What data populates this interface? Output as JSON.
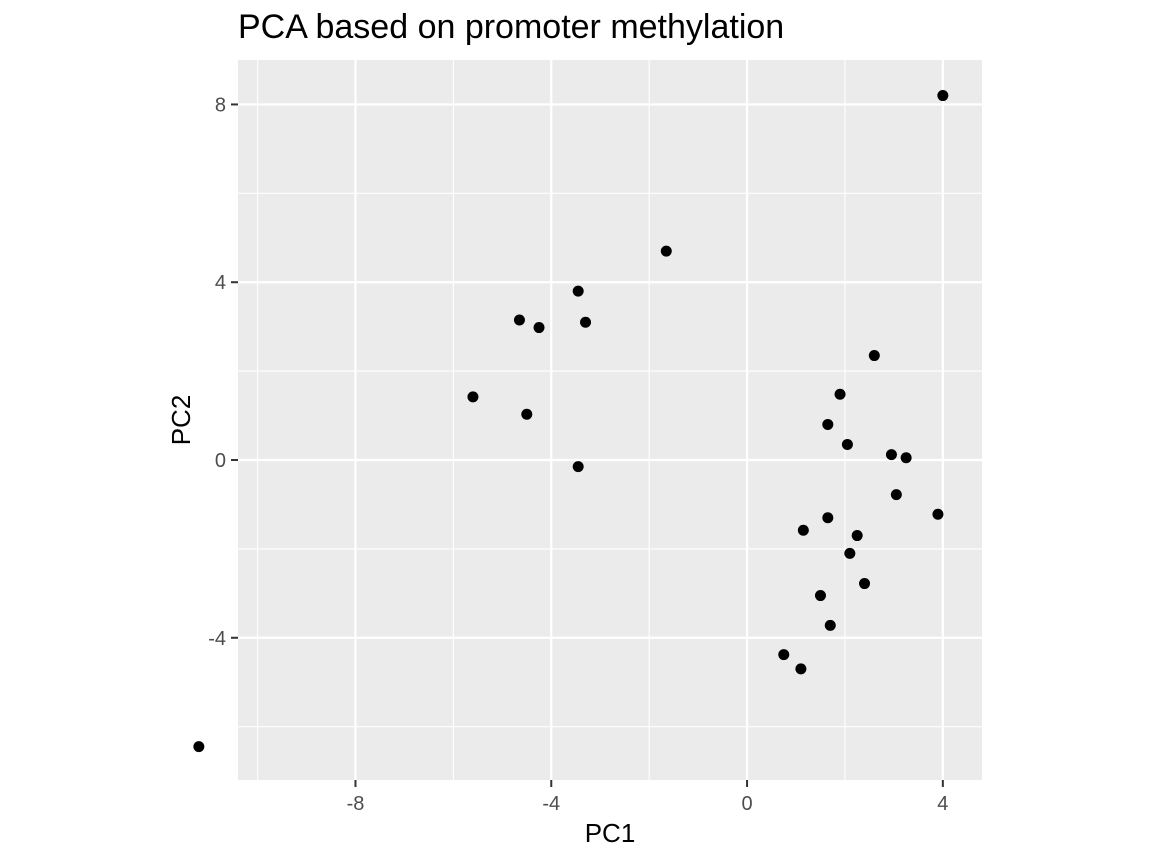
{
  "chart_data": {
    "type": "scatter",
    "title": "PCA based on promoter methylation",
    "xlabel": "PC1",
    "ylabel": "PC2",
    "xlim": [
      -10.4,
      4.8
    ],
    "ylim": [
      -7.2,
      9.0
    ],
    "x_ticks": [
      -8,
      -4,
      0,
      4
    ],
    "x_tick_labels": [
      "-8",
      "-4",
      "0",
      "4"
    ],
    "y_ticks": [
      -4,
      0,
      4,
      8
    ],
    "y_tick_labels": [
      "-4",
      "0",
      "4",
      "8"
    ],
    "grid": true,
    "legend": "none",
    "colors": {
      "panel_background": "#ebebeb",
      "grid": "#ffffff",
      "point": "#000000",
      "tick_label": "#4d4d4d",
      "tick_mark": "#333333"
    },
    "points": [
      {
        "x": 4.0,
        "y": 8.2
      },
      {
        "x": -1.65,
        "y": 4.7
      },
      {
        "x": -3.45,
        "y": 3.8
      },
      {
        "x": -4.65,
        "y": 3.15
      },
      {
        "x": -4.25,
        "y": 2.98
      },
      {
        "x": -3.3,
        "y": 3.1
      },
      {
        "x": -5.6,
        "y": 1.42
      },
      {
        "x": -4.5,
        "y": 1.03
      },
      {
        "x": -3.45,
        "y": -0.15
      },
      {
        "x": 2.6,
        "y": 2.35
      },
      {
        "x": 1.9,
        "y": 1.48
      },
      {
        "x": 1.65,
        "y": 0.8
      },
      {
        "x": 2.05,
        "y": 0.35
      },
      {
        "x": 2.95,
        "y": 0.12
      },
      {
        "x": 3.25,
        "y": 0.05
      },
      {
        "x": 3.05,
        "y": -0.78
      },
      {
        "x": 3.9,
        "y": -1.22
      },
      {
        "x": 1.15,
        "y": -1.58
      },
      {
        "x": 1.65,
        "y": -1.3
      },
      {
        "x": 2.25,
        "y": -1.7
      },
      {
        "x": 2.1,
        "y": -2.1
      },
      {
        "x": 2.4,
        "y": -2.78
      },
      {
        "x": 1.5,
        "y": -3.05
      },
      {
        "x": 1.7,
        "y": -3.72
      },
      {
        "x": 0.75,
        "y": -4.38
      },
      {
        "x": 1.1,
        "y": -4.7
      },
      {
        "x": -11.2,
        "y": -6.45
      }
    ]
  }
}
